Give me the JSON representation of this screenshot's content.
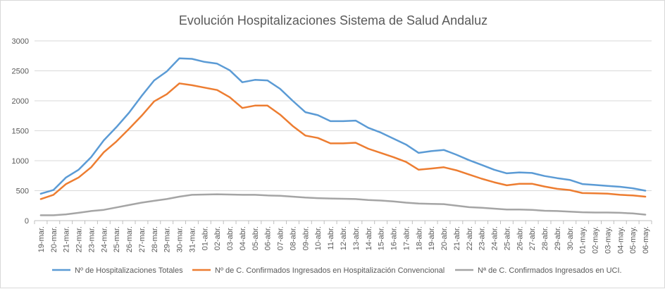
{
  "chart_data": {
    "type": "line",
    "title": "Evolución Hospitalizaciones Sistema de Salud Andaluz",
    "xlabel": "",
    "ylabel": "",
    "ylim": [
      0,
      3000
    ],
    "yticks": [
      0,
      500,
      1000,
      1500,
      2000,
      2500,
      3000
    ],
    "grid": true,
    "legend_position": "bottom",
    "categories": [
      "19-mar.",
      "20-mar.",
      "21-mar.",
      "22-mar.",
      "23-mar.",
      "24-mar.",
      "25-mar.",
      "26-mar.",
      "27-mar.",
      "28-mar.",
      "29-mar.",
      "30-mar.",
      "31-mar.",
      "01-abr.",
      "02-abr.",
      "03-abr.",
      "04-abr.",
      "05-abr.",
      "06-abr.",
      "07-abr.",
      "08-abr.",
      "09-abr.",
      "10-abr.",
      "11-abr.",
      "12-abr.",
      "13-abr.",
      "14-abr.",
      "15-abr.",
      "16-abr.",
      "17-abr.",
      "18-abr.",
      "19-abr.",
      "20-abr.",
      "21-abr.",
      "22-abr.",
      "23-abr.",
      "24-abr.",
      "25-abr.",
      "26-abr.",
      "27-abr.",
      "28-abr.",
      "29-abr.",
      "30-abr.",
      "01-may.",
      "02-may.",
      "03-may.",
      "04-may.",
      "05-may.",
      "06-may."
    ],
    "series": [
      {
        "name": "Nº de Hospitalizaciones Totales",
        "color": "#5b9bd5",
        "values": [
          450,
          510,
          720,
          850,
          1060,
          1340,
          1560,
          1800,
          2080,
          2340,
          2490,
          2710,
          2700,
          2650,
          2620,
          2510,
          2310,
          2350,
          2340,
          2200,
          2000,
          1810,
          1760,
          1660,
          1660,
          1670,
          1550,
          1470,
          1370,
          1270,
          1130,
          1160,
          1180,
          1100,
          1010,
          930,
          850,
          790,
          805,
          795,
          745,
          710,
          680,
          610,
          595,
          580,
          565,
          540,
          500
        ]
      },
      {
        "name": "Nº de C. Confirmados Ingresados en Hospitalización Convencional",
        "color": "#ed7d31",
        "values": [
          360,
          430,
          610,
          720,
          890,
          1140,
          1320,
          1530,
          1750,
          1990,
          2110,
          2290,
          2260,
          2220,
          2180,
          2060,
          1880,
          1920,
          1920,
          1770,
          1580,
          1420,
          1380,
          1290,
          1290,
          1300,
          1200,
          1130,
          1060,
          980,
          850,
          870,
          890,
          840,
          770,
          700,
          640,
          590,
          615,
          615,
          570,
          530,
          510,
          460,
          455,
          450,
          430,
          420,
          400
        ]
      },
      {
        "name": "Nª de C. Confirmados Ingresados en UCI.",
        "color": "#a5a5a5",
        "values": [
          90,
          90,
          105,
          130,
          160,
          180,
          220,
          260,
          300,
          330,
          360,
          400,
          430,
          435,
          440,
          435,
          430,
          430,
          420,
          415,
          400,
          385,
          375,
          370,
          365,
          360,
          345,
          335,
          320,
          300,
          285,
          280,
          275,
          250,
          225,
          215,
          200,
          185,
          185,
          180,
          165,
          160,
          150,
          140,
          135,
          135,
          130,
          120,
          100
        ]
      }
    ]
  }
}
